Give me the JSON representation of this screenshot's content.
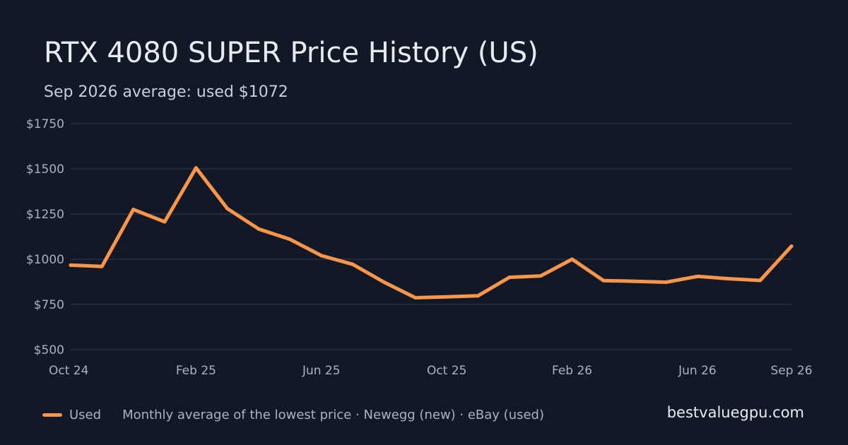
{
  "header": {
    "title": "RTX 4080 SUPER Price History (US)",
    "subtitle": "Sep 2026 average: used $1072"
  },
  "footer": {
    "legend_label": "Used",
    "note": "Monthly average of the lowest price · Newegg (new) · eBay (used)",
    "brand": "bestvaluegpu.com"
  },
  "colors": {
    "background": "#121826",
    "series_used": "#f7964a",
    "grid": "#2a3242",
    "text": "#e8ecf2",
    "muted": "#a9b2c2"
  },
  "chart_data": {
    "type": "line",
    "title": "RTX 4080 SUPER Price History (US)",
    "subtitle": "Sep 2026 average: used $1072",
    "x": [
      "2024-10",
      "2024-11",
      "2024-12",
      "2025-01",
      "2025-02",
      "2025-03",
      "2025-04",
      "2025-05",
      "2025-06",
      "2025-07",
      "2025-08",
      "2025-09",
      "2025-10",
      "2025-11",
      "2025-12",
      "2026-01",
      "2026-02",
      "2026-03",
      "2026-04",
      "2026-05",
      "2026-06",
      "2026-07",
      "2026-08",
      "2026-09"
    ],
    "x_tick_labels": [
      "Oct 24",
      "Feb 25",
      "Jun 25",
      "Oct 25",
      "Feb 26",
      "Jun 26",
      "Sep 26"
    ],
    "x_tick_positions": [
      "2024-10",
      "2025-02",
      "2025-06",
      "2025-10",
      "2026-02",
      "2026-06",
      "2026-09"
    ],
    "series": [
      {
        "name": "Used",
        "color": "#f7964a",
        "values": [
          967,
          960,
          1275,
          1207,
          1505,
          1280,
          1167,
          1110,
          1020,
          972,
          873,
          787,
          792,
          798,
          900,
          908,
          1000,
          882,
          878,
          873,
          905,
          892,
          883,
          1072
        ]
      }
    ],
    "y_ticks": [
      "$1750",
      "$1500",
      "$1250",
      "$1000",
      "$750",
      "$500"
    ],
    "y_tick_values": [
      1750,
      1500,
      1250,
      1000,
      750,
      500
    ],
    "ylim": [
      500,
      1750
    ],
    "grid": true,
    "legend_position": "bottom-left"
  }
}
